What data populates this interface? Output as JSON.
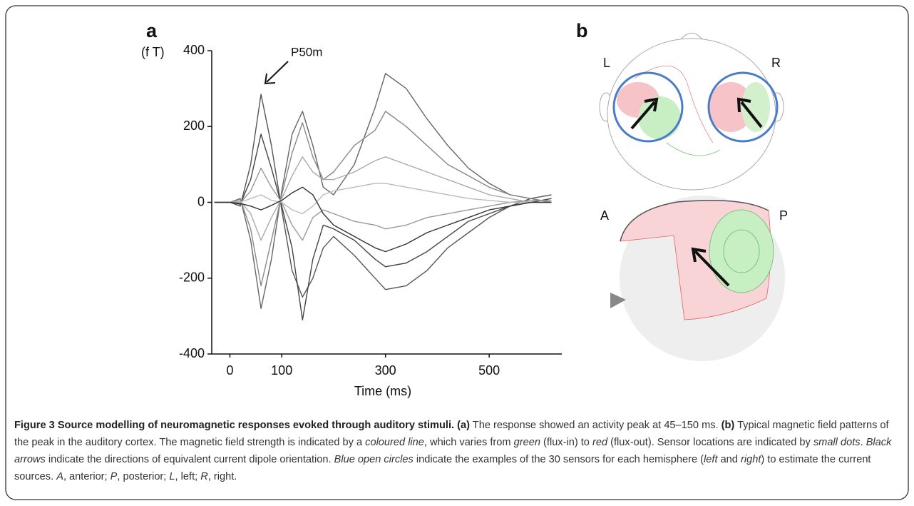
{
  "chart_data": {
    "type": "line",
    "panel_label": "a",
    "annotation": "P50m",
    "y_label": "(f T)",
    "x_label": "Time (ms)",
    "xlim": [
      -35,
      640
    ],
    "ylim": [
      -400,
      400
    ],
    "xticks": [
      0,
      100,
      300,
      500
    ],
    "yticks": [
      -400,
      -200,
      0,
      200,
      400
    ],
    "x": [
      -30,
      0,
      20,
      40,
      60,
      80,
      100,
      120,
      140,
      160,
      180,
      200,
      240,
      280,
      300,
      340,
      380,
      420,
      460,
      500,
      540,
      580,
      620
    ],
    "series": [
      {
        "color": "#555555",
        "values": [
          0,
          0,
          -10,
          100,
          285,
          150,
          -20,
          -180,
          -250,
          -200,
          -120,
          -90,
          -140,
          -200,
          -230,
          -220,
          -180,
          -120,
          -80,
          -40,
          -10,
          10,
          20
        ]
      },
      {
        "color": "#666666",
        "values": [
          0,
          0,
          10,
          -100,
          -280,
          -150,
          30,
          180,
          240,
          150,
          40,
          20,
          100,
          250,
          340,
          300,
          220,
          150,
          90,
          50,
          20,
          10,
          0
        ]
      },
      {
        "color": "#444444",
        "values": [
          0,
          0,
          -5,
          60,
          180,
          90,
          -10,
          -120,
          -310,
          -150,
          -60,
          -70,
          -100,
          -150,
          -170,
          -160,
          -130,
          -90,
          -50,
          -30,
          -10,
          0,
          10
        ]
      },
      {
        "color": "#888888",
        "values": [
          0,
          0,
          8,
          -70,
          -220,
          -100,
          20,
          130,
          210,
          120,
          60,
          80,
          150,
          190,
          240,
          200,
          150,
          100,
          70,
          40,
          20,
          10,
          0
        ]
      },
      {
        "color": "#999999",
        "values": [
          0,
          0,
          -2,
          30,
          90,
          40,
          0,
          -60,
          -100,
          -40,
          -20,
          -30,
          -50,
          -60,
          -70,
          -60,
          -40,
          -30,
          -20,
          -10,
          0,
          5,
          5
        ]
      },
      {
        "color": "#aaaaaa",
        "values": [
          0,
          0,
          3,
          -30,
          -100,
          -40,
          10,
          70,
          120,
          80,
          60,
          60,
          80,
          110,
          120,
          100,
          80,
          60,
          40,
          20,
          10,
          0,
          0
        ]
      },
      {
        "color": "#bbbbbb",
        "values": [
          0,
          0,
          0,
          10,
          20,
          5,
          0,
          -20,
          -30,
          -10,
          20,
          30,
          40,
          50,
          50,
          40,
          30,
          20,
          10,
          5,
          0,
          0,
          0
        ]
      },
      {
        "color": "#333333",
        "values": [
          0,
          0,
          -3,
          -10,
          -20,
          -8,
          5,
          25,
          40,
          20,
          -30,
          -60,
          -90,
          -120,
          -130,
          -110,
          -80,
          -60,
          -40,
          -20,
          -10,
          0,
          0
        ]
      }
    ]
  },
  "panel_b": {
    "label": "b",
    "left": "L",
    "right": "R",
    "anterior": "A",
    "posterior": "P"
  },
  "caption": {
    "title": "Figure 3 Source modelling of neuromagnetic responses evoked through auditory stimuli.",
    "parts": [
      "(a)",
      "The response showed an activity peak at 45–150 ms.",
      "(b)",
      "Typical magnetic field patterns of the peak in the auditory cortex. The magnetic field strength is indicated by a",
      "coloured line",
      ", which varies from",
      "green",
      "(flux-in) to",
      "red",
      "(flux-out). Sensor locations are indicated by",
      "small dots",
      ".",
      "Black arrows",
      "indicate the directions of equivalent current dipole orientation.",
      "Blue open circles",
      "indicate the examples of the 30 sensors for each hemisphere (",
      "left",
      "and",
      "right",
      ") to estimate the current sources.",
      "A",
      ", anterior;",
      "P",
      ", posterior;",
      "L",
      ", left;",
      "R",
      ", right."
    ]
  }
}
